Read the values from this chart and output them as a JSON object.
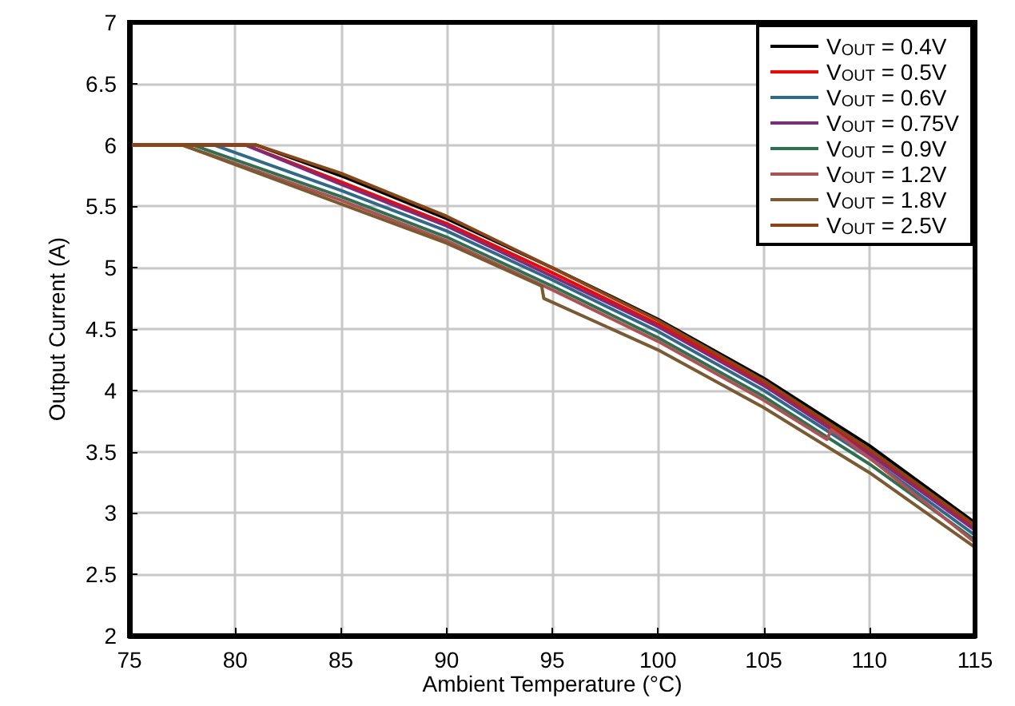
{
  "chart_data": {
    "type": "line",
    "xlabel": "Ambient Temperature (°C)",
    "ylabel": "Output Current (A)",
    "xlim": [
      75,
      115
    ],
    "xticks": [
      75,
      80,
      85,
      90,
      95,
      100,
      105,
      110,
      115
    ],
    "ylim": [
      2,
      7
    ],
    "yticks": [
      2,
      2.5,
      3,
      3.5,
      4,
      4.5,
      5,
      5.5,
      6,
      6.5,
      7
    ],
    "grid": true,
    "legend": "top right",
    "marker": "none",
    "line_style": "solid",
    "series": [
      {
        "name": "V$_{OUT}$ = 0.4V",
        "color": "#000000",
        "x": [
          75,
          81,
          85,
          90,
          95,
          100,
          105,
          110,
          115
        ],
        "values": [
          6,
          6,
          5.75,
          5.4,
          5.0,
          4.58,
          4.1,
          3.55,
          2.92
        ]
      },
      {
        "name": "V$_{OUT}$ = 0.5V",
        "color": "#ff0000",
        "x": [
          75,
          80.5,
          85,
          90,
          95,
          100,
          105,
          110,
          115
        ],
        "values": [
          6,
          6,
          5.7,
          5.36,
          4.96,
          4.54,
          4.06,
          3.5,
          2.88
        ]
      },
      {
        "name": "V$_{OUT}$ = 0.6V",
        "color": "#2e6b8a",
        "x": [
          75,
          79,
          85,
          90,
          95,
          100,
          105,
          110,
          115
        ],
        "values": [
          6,
          6,
          5.63,
          5.3,
          4.9,
          4.48,
          4.0,
          3.45,
          2.82
        ]
      },
      {
        "name": "V$_{OUT}$ = 0.75V",
        "color": "#7b2d7b",
        "x": [
          75,
          80.5,
          85,
          90,
          95,
          100,
          105,
          110,
          115
        ],
        "values": [
          6,
          6,
          5.68,
          5.34,
          4.93,
          4.52,
          4.04,
          3.48,
          2.86
        ]
      },
      {
        "name": "V$_{OUT}$ = 0.9V",
        "color": "#2e7050",
        "x": [
          75,
          78,
          85,
          90,
          95,
          100,
          105,
          110,
          115
        ],
        "values": [
          6,
          6,
          5.58,
          5.25,
          4.85,
          4.43,
          3.95,
          3.4,
          2.78
        ]
      },
      {
        "name": "V$_{OUT}$ = 1.2V",
        "color": "#b05050",
        "x": [
          75,
          77.5,
          85,
          90,
          95,
          100,
          105,
          108,
          108.2,
          110,
          115
        ],
        "values": [
          6,
          6,
          5.55,
          5.22,
          4.82,
          4.4,
          3.92,
          3.6,
          3.68,
          3.45,
          2.76
        ]
      },
      {
        "name": "V$_{OUT}$ = 1.8V",
        "color": "#7a5a30",
        "x": [
          75,
          77.5,
          85,
          90,
          94.5,
          94.6,
          100,
          105,
          110,
          115
        ],
        "values": [
          6,
          6,
          5.52,
          5.2,
          4.85,
          4.75,
          4.33,
          3.86,
          3.33,
          2.72
        ]
      },
      {
        "name": "V$_{OUT}$ = 2.5V",
        "color": "#8b4513",
        "x": [
          75,
          81,
          85,
          90,
          95,
          100,
          105,
          110,
          115
        ],
        "values": [
          6,
          6,
          5.77,
          5.42,
          5.0,
          4.57,
          4.08,
          3.52,
          2.9
        ]
      }
    ]
  }
}
